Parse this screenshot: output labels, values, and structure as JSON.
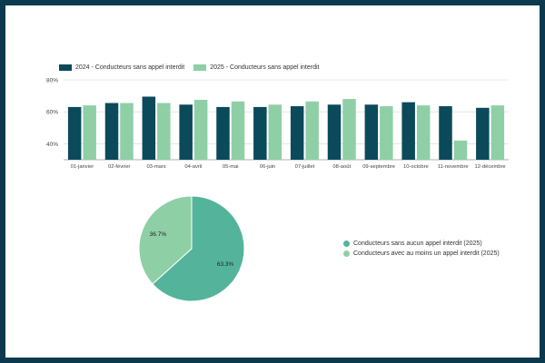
{
  "chart_data": [
    {
      "type": "bar",
      "categories": [
        "01-janvier",
        "02-février",
        "03-mars",
        "04-avril",
        "05-mai",
        "06-juin",
        "07-juillet",
        "08-août",
        "09-septembre",
        "10-octobre",
        "11-novembre",
        "12-décembre"
      ],
      "series": [
        {
          "name": "2024 - Conducteurs sans appel interdit",
          "color": "#0b4a5a",
          "values": [
            63,
            65.5,
            69.5,
            64.5,
            63,
            63,
            63.5,
            64.5,
            64.5,
            66,
            63.5,
            62.5
          ]
        },
        {
          "name": "2025 - Conducteurs sans appel interdit",
          "color": "#8fcfa6",
          "values": [
            64,
            65.5,
            65.5,
            67.5,
            66.5,
            64.5,
            66.5,
            68,
            63.5,
            64,
            42,
            64
          ]
        }
      ],
      "ylim": [
        30,
        80
      ],
      "yticks": [
        40,
        60,
        80
      ],
      "ytick_labels": [
        "40%",
        "60%",
        "80%"
      ],
      "grid": true,
      "legend": "top-left"
    },
    {
      "type": "pie",
      "slices": [
        {
          "name": "Conducteurs sans aucun appel interdit (2025)",
          "value": 63.3,
          "label": "63.3%",
          "color": "#54b49b"
        },
        {
          "name": "Conducteurs avec au moins un appel interdit (2025)",
          "value": 36.7,
          "label": "36.7%",
          "color": "#8fcfa6"
        }
      ],
      "legend": "right"
    }
  ]
}
